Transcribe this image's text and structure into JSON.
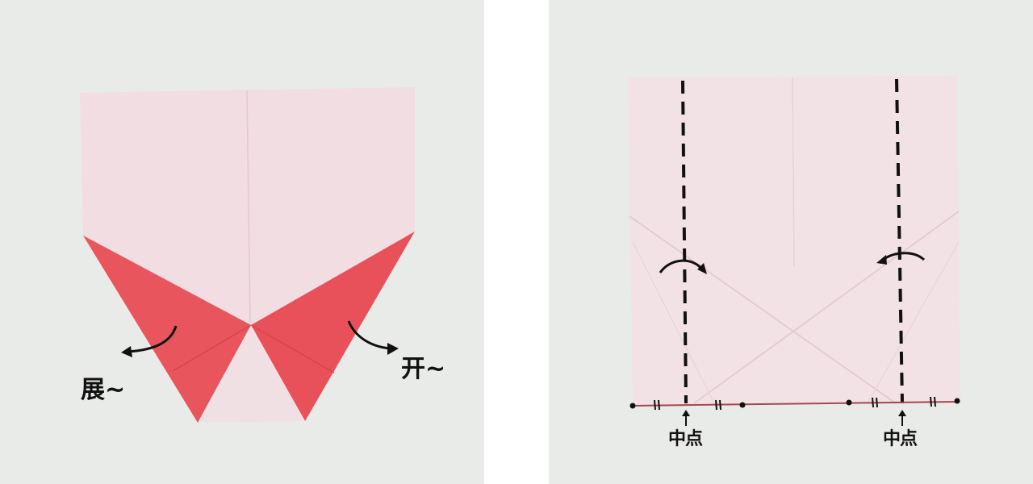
{
  "panels": {
    "left": {
      "annotation_left": "展~",
      "annotation_right": "开~"
    },
    "right": {
      "midpoint_label_1": "中点",
      "midpoint_label_2": "中点"
    }
  },
  "colors": {
    "background": "#e9ebe8",
    "paper_light": "#f3dfe3",
    "paper_red": "#e8525a",
    "ink": "#111111"
  }
}
